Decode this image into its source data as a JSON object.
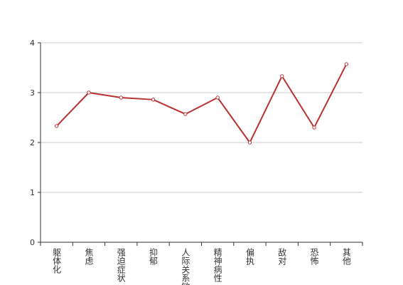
{
  "chart_data": {
    "type": "line",
    "categories": [
      "躯体化",
      "焦虑",
      "强迫症状",
      "抑郁",
      "人际关系敏感",
      "精神病性",
      "偏执",
      "敌对",
      "恐怖",
      "其他"
    ],
    "values": [
      2.33,
      3.0,
      2.9,
      2.86,
      2.57,
      2.9,
      2.0,
      3.33,
      2.3,
      3.57
    ],
    "color": "#b83232",
    "ylim": [
      0,
      4
    ],
    "yticks": [
      0,
      1,
      2,
      3,
      4
    ],
    "grid": true
  }
}
